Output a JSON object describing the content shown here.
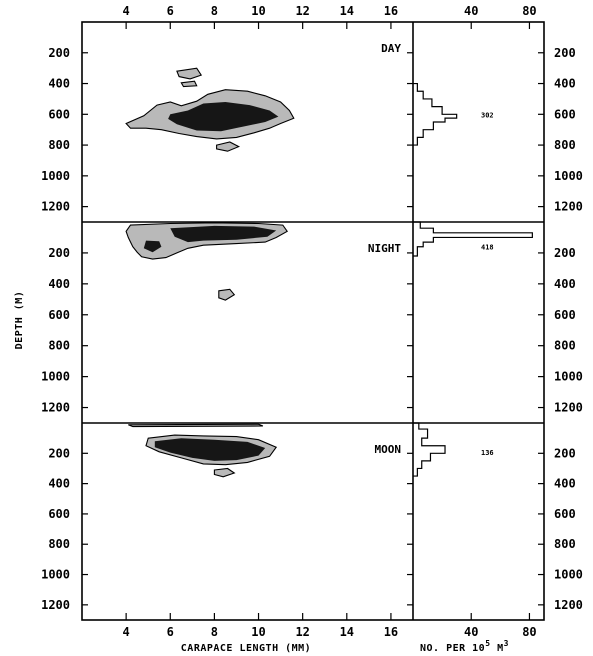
{
  "chart_data": {
    "type": "heatmap",
    "x_axis": {
      "label": "CARAPACE LENGTH (MM)",
      "range": [
        2,
        17
      ],
      "ticks": [
        4,
        6,
        8,
        10,
        12,
        14,
        16
      ],
      "tick_labels": [
        "4",
        "6",
        "8",
        "10",
        "12",
        "14",
        "16"
      ]
    },
    "y_axis": {
      "label": "DEPTH (M)",
      "range": [
        0,
        1300
      ],
      "inverted": true,
      "ticks": [
        200,
        400,
        600,
        800,
        1000,
        1200
      ],
      "tick_labels": [
        "200",
        "400",
        "600",
        "800",
        "1000",
        "1200"
      ]
    },
    "hist_axis": {
      "label_prefix": "NO. PER 10",
      "label_exp": "5",
      "label_suffix": " M",
      "label_exp2": "3",
      "range": [
        0,
        90
      ],
      "ticks": [
        40,
        80
      ],
      "tick_labels": [
        "40",
        "80"
      ]
    },
    "panels": [
      {
        "label": "DAY",
        "total_count": "302",
        "count_depth": 600,
        "contours": {
          "outer": [
            [
              [
                6.3,
                320
              ],
              [
                7.2,
                300
              ],
              [
                7.4,
                345
              ],
              [
                6.9,
                370
              ],
              [
                6.4,
                355
              ]
            ],
            [
              [
                6.5,
                395
              ],
              [
                7.1,
                385
              ],
              [
                7.2,
                415
              ],
              [
                6.6,
                420
              ]
            ],
            [
              [
                4.0,
                660
              ],
              [
                4.8,
                610
              ],
              [
                5.4,
                540
              ],
              [
                6.0,
                520
              ],
              [
                6.5,
                545
              ],
              [
                7.2,
                515
              ],
              [
                7.7,
                470
              ],
              [
                8.5,
                440
              ],
              [
                9.5,
                450
              ],
              [
                10.3,
                480
              ],
              [
                11.0,
                520
              ],
              [
                11.4,
                575
              ],
              [
                11.6,
                625
              ],
              [
                11.0,
                660
              ],
              [
                10.5,
                690
              ],
              [
                9.8,
                720
              ],
              [
                9.0,
                750
              ],
              [
                8.1,
                760
              ],
              [
                7.2,
                745
              ],
              [
                6.4,
                725
              ],
              [
                5.6,
                700
              ],
              [
                4.9,
                690
              ],
              [
                4.2,
                690
              ]
            ],
            [
              [
                8.1,
                800
              ],
              [
                8.7,
                780
              ],
              [
                9.1,
                810
              ],
              [
                8.6,
                840
              ],
              [
                8.1,
                825
              ]
            ]
          ],
          "inner": [
            [
              [
                6.0,
                600
              ],
              [
                6.8,
                575
              ],
              [
                7.5,
                530
              ],
              [
                8.5,
                520
              ],
              [
                9.6,
                540
              ],
              [
                10.5,
                575
              ],
              [
                10.9,
                615
              ],
              [
                10.3,
                650
              ],
              [
                9.3,
                680
              ],
              [
                8.3,
                710
              ],
              [
                7.2,
                705
              ],
              [
                6.3,
                665
              ],
              [
                5.9,
                630
              ]
            ]
          ]
        },
        "histogram": [
          {
            "depth": [
              400,
              450
            ],
            "value": 3
          },
          {
            "depth": [
              450,
              500
            ],
            "value": 7
          },
          {
            "depth": [
              500,
              550
            ],
            "value": 13
          },
          {
            "depth": [
              550,
              600
            ],
            "value": 20
          },
          {
            "depth": [
              600,
              625
            ],
            "value": 30
          },
          {
            "depth": [
              625,
              650
            ],
            "value": 22
          },
          {
            "depth": [
              650,
              700
            ],
            "value": 14
          },
          {
            "depth": [
              700,
              750
            ],
            "value": 7
          },
          {
            "depth": [
              750,
              800
            ],
            "value": 3
          }
        ]
      },
      {
        "label": "NIGHT",
        "total_count": "418",
        "count_depth": 160,
        "contours": {
          "outer": [
            [
              [
                4.2,
                20
              ],
              [
                6.0,
                10
              ],
              [
                8.0,
                5
              ],
              [
                10.0,
                10
              ],
              [
                11.1,
                20
              ],
              [
                11.3,
                60
              ],
              [
                10.8,
                100
              ],
              [
                10.3,
                130
              ],
              [
                9.0,
                140
              ],
              [
                7.5,
                150
              ],
              [
                6.8,
                170
              ],
              [
                6.3,
                200
              ],
              [
                5.8,
                230
              ],
              [
                5.2,
                240
              ],
              [
                4.7,
                225
              ],
              [
                4.5,
                195
              ],
              [
                4.3,
                160
              ],
              [
                4.1,
                100
              ],
              [
                4.0,
                60
              ]
            ],
            [
              [
                8.2,
                445
              ],
              [
                8.7,
                435
              ],
              [
                8.9,
                470
              ],
              [
                8.5,
                505
              ],
              [
                8.2,
                490
              ]
            ]
          ],
          "inner": [
            [
              [
                6.0,
                40
              ],
              [
                8.0,
                25
              ],
              [
                9.8,
                30
              ],
              [
                10.8,
                55
              ],
              [
                10.4,
                95
              ],
              [
                9.0,
                115
              ],
              [
                7.5,
                120
              ],
              [
                6.8,
                130
              ],
              [
                6.2,
                95
              ]
            ],
            [
              [
                4.9,
                120
              ],
              [
                5.5,
                125
              ],
              [
                5.6,
                160
              ],
              [
                5.2,
                195
              ],
              [
                4.8,
                170
              ]
            ]
          ]
        },
        "histogram": [
          {
            "depth": [
              0,
              40
            ],
            "value": 5
          },
          {
            "depth": [
              40,
              70
            ],
            "value": 14
          },
          {
            "depth": [
              70,
              100
            ],
            "value": 82
          },
          {
            "depth": [
              100,
              130
            ],
            "value": 14
          },
          {
            "depth": [
              130,
              160
            ],
            "value": 7
          },
          {
            "depth": [
              160,
              220
            ],
            "value": 3
          }
        ]
      },
      {
        "label": "MOON",
        "total_count": "136",
        "count_depth": 190,
        "contours": {
          "outer": [
            [
              [
                4.1,
                12
              ],
              [
                10.0,
                8
              ],
              [
                10.2,
                20
              ],
              [
                4.3,
                24
              ]
            ],
            [
              [
                5.0,
                100
              ],
              [
                6.2,
                80
              ],
              [
                7.5,
                85
              ],
              [
                9.0,
                90
              ],
              [
                10.0,
                110
              ],
              [
                10.8,
                160
              ],
              [
                10.5,
                220
              ],
              [
                9.5,
                260
              ],
              [
                8.5,
                275
              ],
              [
                7.5,
                270
              ],
              [
                6.5,
                230
              ],
              [
                5.5,
                190
              ],
              [
                4.9,
                150
              ]
            ],
            [
              [
                8.0,
                310
              ],
              [
                8.6,
                300
              ],
              [
                8.9,
                330
              ],
              [
                8.4,
                355
              ],
              [
                8.0,
                340
              ]
            ]
          ],
          "inner": [
            [
              [
                5.3,
                120
              ],
              [
                6.5,
                100
              ],
              [
                8.0,
                110
              ],
              [
                9.5,
                125
              ],
              [
                10.3,
                165
              ],
              [
                10.0,
                215
              ],
              [
                9.0,
                245
              ],
              [
                8.0,
                250
              ],
              [
                7.0,
                230
              ],
              [
                6.0,
                195
              ],
              [
                5.3,
                160
              ]
            ]
          ]
        },
        "histogram": [
          {
            "depth": [
              0,
              40
            ],
            "value": 4
          },
          {
            "depth": [
              40,
              100
            ],
            "value": 10
          },
          {
            "depth": [
              100,
              150
            ],
            "value": 6
          },
          {
            "depth": [
              150,
              200
            ],
            "value": 22
          },
          {
            "depth": [
              200,
              250
            ],
            "value": 12
          },
          {
            "depth": [
              250,
              300
            ],
            "value": 6
          },
          {
            "depth": [
              300,
              350
            ],
            "value": 3
          }
        ]
      }
    ]
  }
}
